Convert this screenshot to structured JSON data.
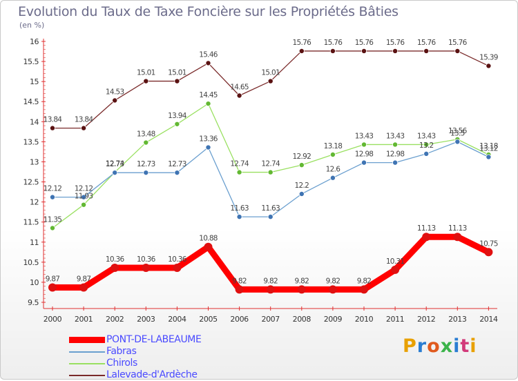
{
  "title": "Evolution du Taux de Taxe Foncière sur les Propriétés Bâties",
  "unit_label": "(en %)",
  "brand": {
    "letters": [
      "P",
      "r",
      "o",
      "x",
      "i",
      "t",
      "i"
    ],
    "colors": [
      "#e8a000",
      "#2a7dd2",
      "#e05a1e",
      "#3bb34a",
      "#2a7dd2",
      "#d23a7a",
      "#e8a000"
    ]
  },
  "chart_data": {
    "type": "line",
    "title": "Evolution du Taux de Taxe Foncière sur les Propriétés Bâties",
    "ylabel": "(en %)",
    "xlabel": "",
    "categories": [
      "2000",
      "2001",
      "2002",
      "2003",
      "2004",
      "2005",
      "2006",
      "2007",
      "2008",
      "2009",
      "2010",
      "2011",
      "2012",
      "2013",
      "2014"
    ],
    "ylim": [
      9.5,
      16
    ],
    "yticks": [
      "9.5",
      "10",
      "10.5",
      "11",
      "11.5",
      "12",
      "12.5",
      "13",
      "13.5",
      "14",
      "14.5",
      "15",
      "15.5",
      "16"
    ],
    "grid": false,
    "series": [
      {
        "name": "PONT-DE-LABEAUME",
        "color": "#ff0000",
        "marker": "#e01010",
        "thick": true,
        "values": [
          9.87,
          9.87,
          10.36,
          10.36,
          10.36,
          10.88,
          9.82,
          9.82,
          9.82,
          9.82,
          9.82,
          10.31,
          11.13,
          11.13,
          10.75
        ],
        "labels": [
          "9.87",
          "9.87",
          "10.36",
          "10.36",
          "10.36",
          "10.88",
          "9.82",
          "9.82",
          "9.82",
          "9.82",
          "9.82",
          "10.31",
          "11.13",
          "11.13",
          "10.75"
        ]
      },
      {
        "name": "Fabras",
        "color": "#6a9fcf",
        "marker": "#3f74b3",
        "thick": false,
        "values": [
          12.12,
          12.12,
          12.73,
          12.73,
          12.73,
          13.36,
          11.63,
          11.63,
          12.2,
          12.6,
          12.98,
          12.98,
          13.2,
          13.5,
          13.12
        ],
        "labels": [
          "12.12",
          "12.12",
          "12.73",
          "12.73",
          "12.73",
          "13.36",
          "11.63",
          "11.63",
          "12.2",
          "12.6",
          "12.98",
          "12.98",
          "13.2",
          "13.5",
          "13.12"
        ]
      },
      {
        "name": "Chirols",
        "color": "#99e060",
        "marker": "#62b832",
        "thick": false,
        "values": [
          11.35,
          11.93,
          12.74,
          13.48,
          13.94,
          14.45,
          12.74,
          12.74,
          12.92,
          13.18,
          13.43,
          13.43,
          13.43,
          13.56,
          13.18
        ],
        "labels": [
          "11.35",
          "11.93",
          "12.74",
          "13.48",
          "13.94",
          "14.45",
          "12.74",
          "12.74",
          "12.92",
          "13.18",
          "13.43",
          "13.43",
          "13.43",
          "13.56",
          "13.18"
        ]
      },
      {
        "name": "Lalevade-d'Ardèche",
        "color": "#7a2a2a",
        "marker": "#5a1212",
        "thick": false,
        "values": [
          13.84,
          13.84,
          14.53,
          15.01,
          15.01,
          15.46,
          14.65,
          15.01,
          15.76,
          15.76,
          15.76,
          15.76,
          15.76,
          15.76,
          15.39
        ],
        "labels": [
          "13.84",
          "13.84",
          "14.53",
          "15.01",
          "15.01",
          "15.46",
          "14.65",
          "15.01",
          "15.76",
          "15.76",
          "15.76",
          "15.76",
          "15.76",
          "15.76",
          "15.39"
        ]
      }
    ],
    "legend_position": "bottom-left"
  }
}
